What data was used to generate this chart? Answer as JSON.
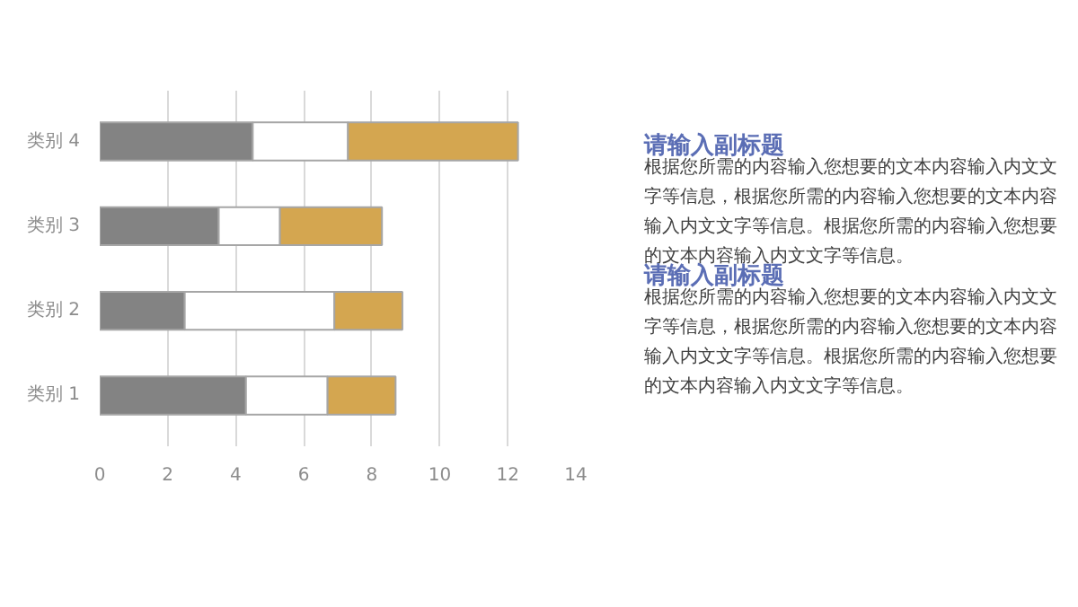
{
  "chart_data": {
    "type": "bar",
    "orientation": "horizontal",
    "stacked": true,
    "categories": [
      "类别 4",
      "类别 3",
      "类别 2",
      "类别 1"
    ],
    "series": [
      {
        "color": "#838383",
        "values": [
          4.5,
          3.5,
          2.5,
          4.3
        ]
      },
      {
        "color": "#ffffff",
        "values": [
          2.8,
          1.8,
          4.4,
          2.4
        ]
      },
      {
        "color": "#d4a650",
        "values": [
          5.0,
          3.0,
          2.0,
          2.0
        ]
      }
    ],
    "xlim": [
      0,
      14
    ],
    "xticks": [
      0,
      2,
      4,
      6,
      8,
      10,
      12,
      14
    ],
    "grid": "x",
    "annotations": [
      "请输入副标题",
      "根据您所需的内容输入您想要的文本内容输入内文文字等信息，根据您所需的内容输入您想要的文本内容输入内文文字等信息。根据您所需的内容输入您想要的文本内容输入内文文字等信息。",
      "请输入副标题",
      "根据您所需的内容输入您想要的文本内容输入内文文字等信息，根据您所需的内容输入您想要的文本内容输入内文文字等信息。根据您所需的内容输入您想要的文本内容输入内文文字等信息。"
    ]
  }
}
